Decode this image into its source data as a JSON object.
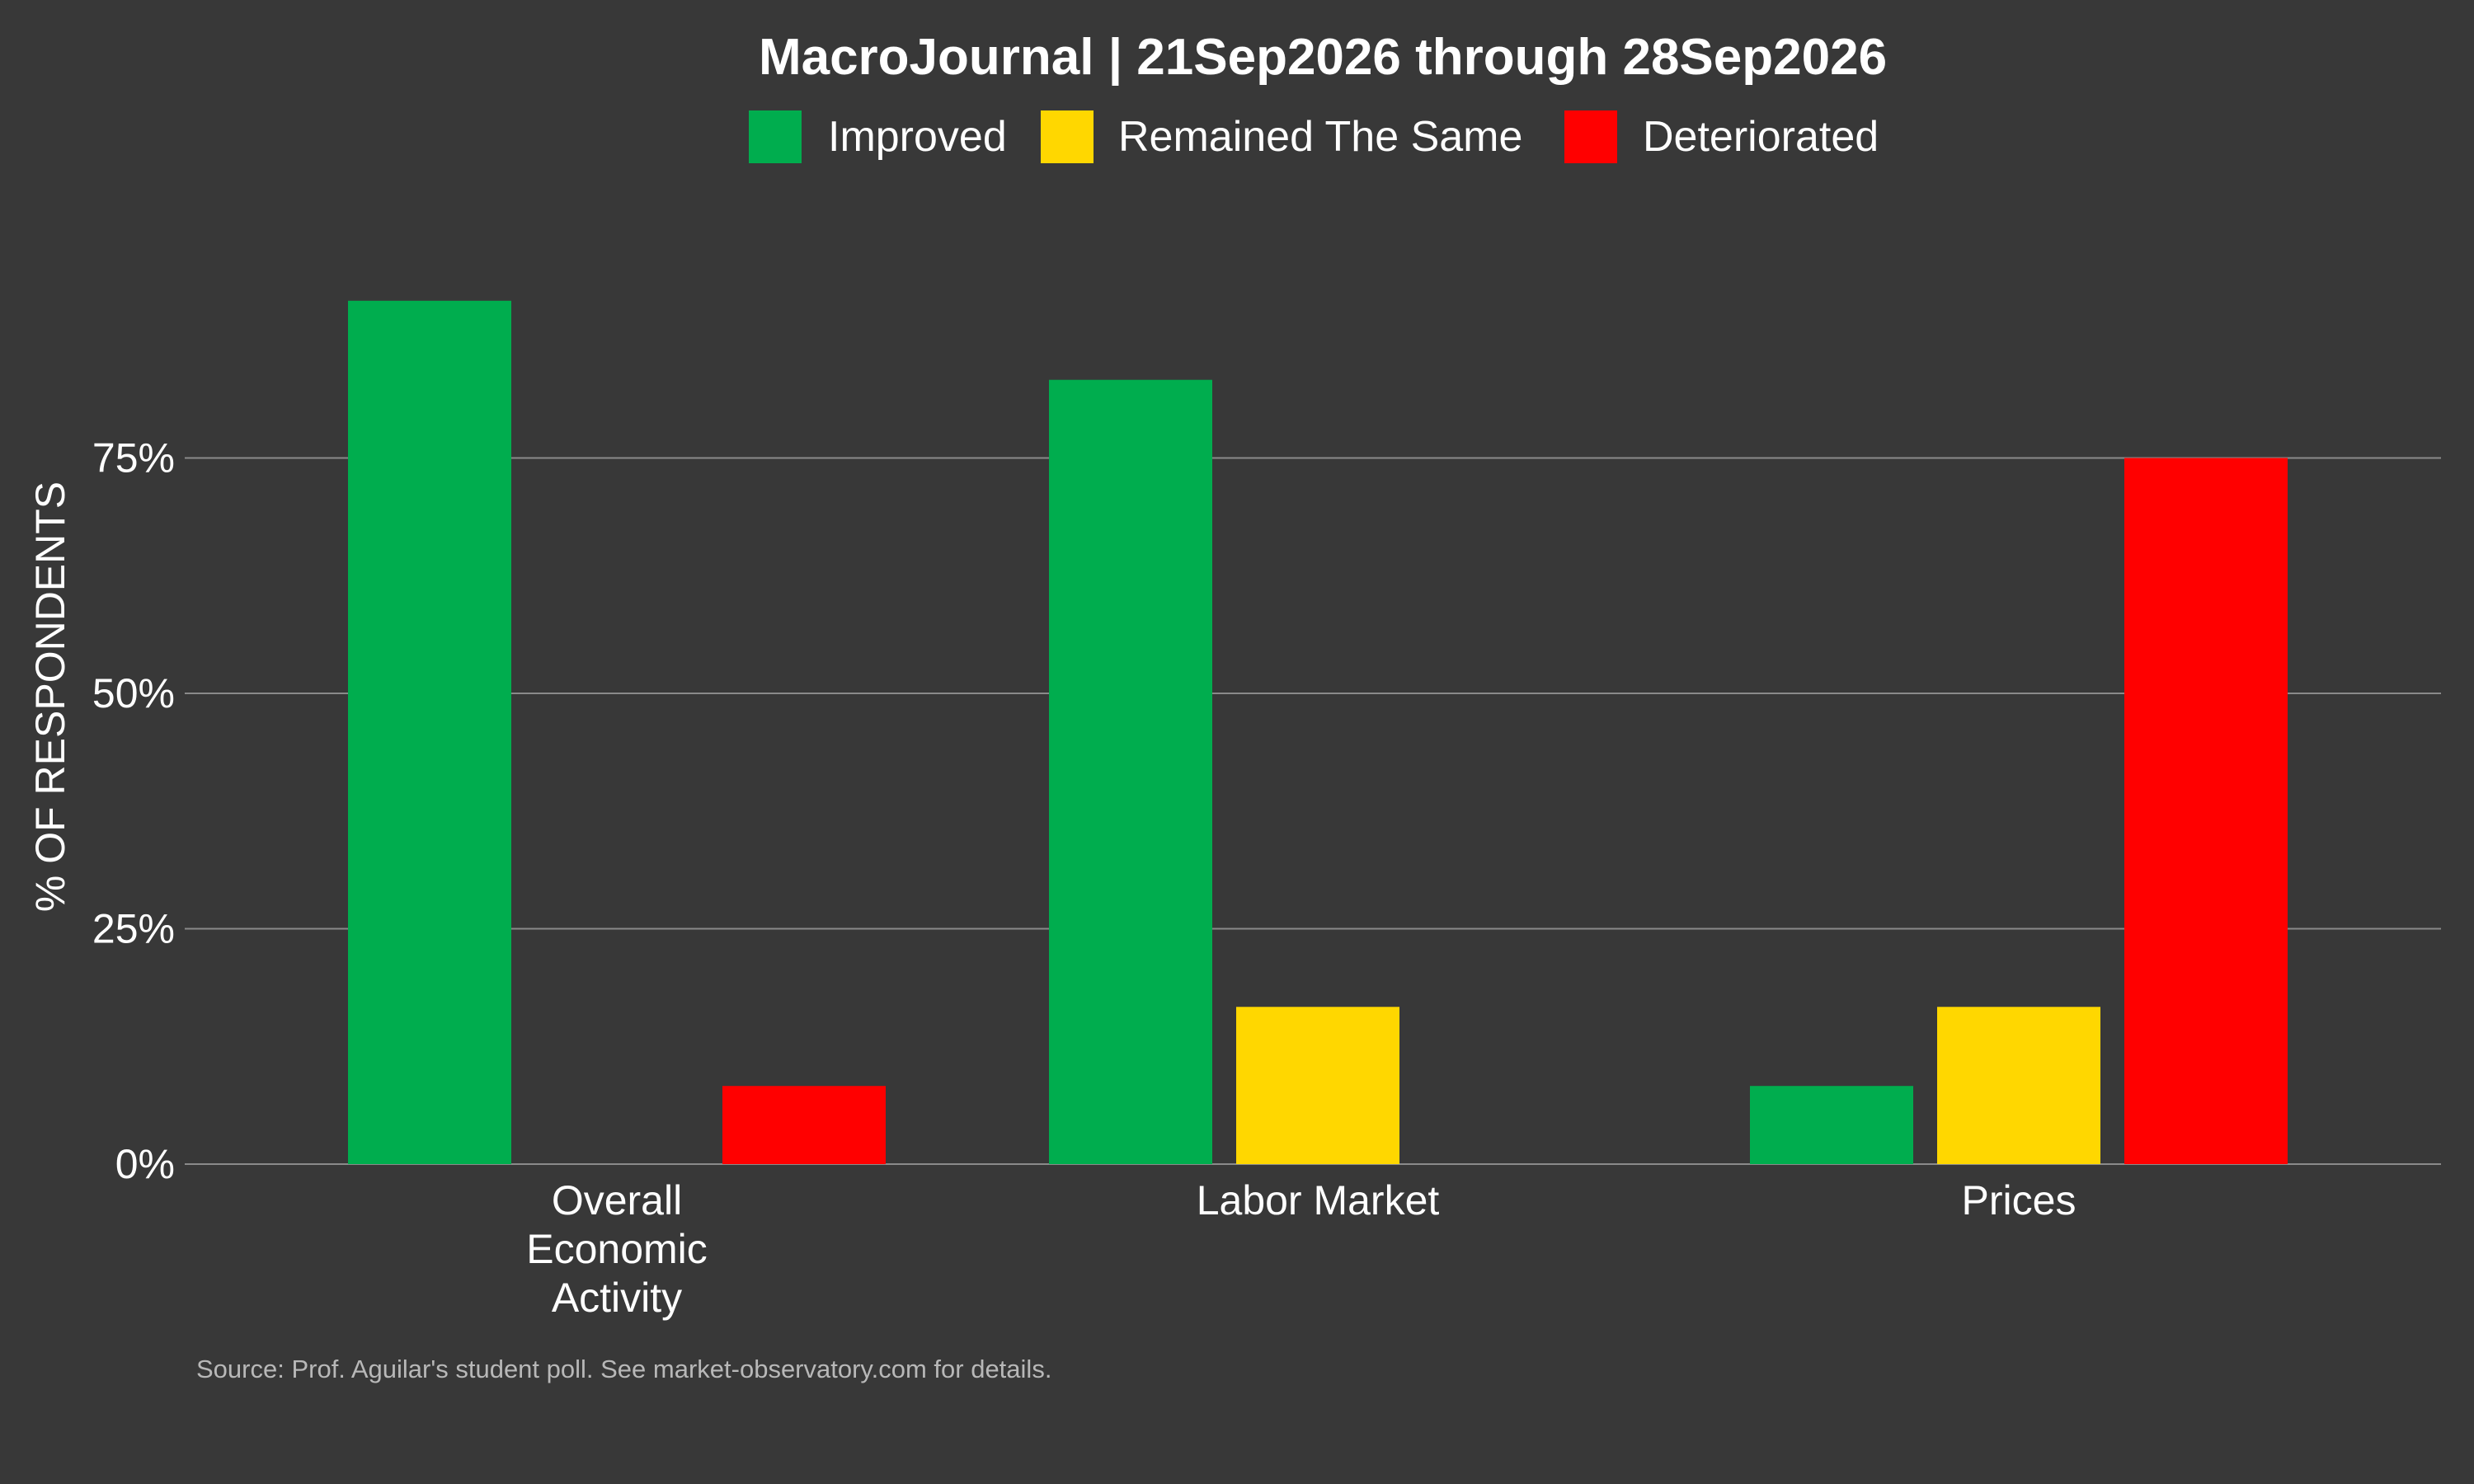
{
  "chart_data": {
    "type": "bar",
    "title": "MacroJournal | 21Sep2026 through 28Sep2026",
    "ylabel": "% OF RESPONDENTS",
    "xlabel": "",
    "categories": [
      [
        "Overall",
        "Economic",
        "Activity"
      ],
      [
        "Labor Market"
      ],
      [
        "Prices"
      ]
    ],
    "series": [
      {
        "name": "Improved",
        "color": "#00AD4E",
        "values": [
          91.7,
          83.3,
          8.3
        ]
      },
      {
        "name": "Remained The Same",
        "color": "#FFD700",
        "values": [
          0,
          16.7,
          16.7
        ]
      },
      {
        "name": "Deteriorated",
        "color": "#FF0000",
        "values": [
          8.3,
          0,
          75
        ]
      }
    ],
    "yticks": [
      0,
      25,
      50,
      75
    ],
    "ytick_labels": [
      "0%",
      "25%",
      "50%",
      "75%"
    ],
    "ylim": [
      0,
      100
    ],
    "grid": true,
    "legend_position": "top-center",
    "source": "Source: Prof. Aguilar's student poll.  See market-observatory.com for details.",
    "background": "#383838",
    "gridline_color": "#8a8a8a"
  }
}
